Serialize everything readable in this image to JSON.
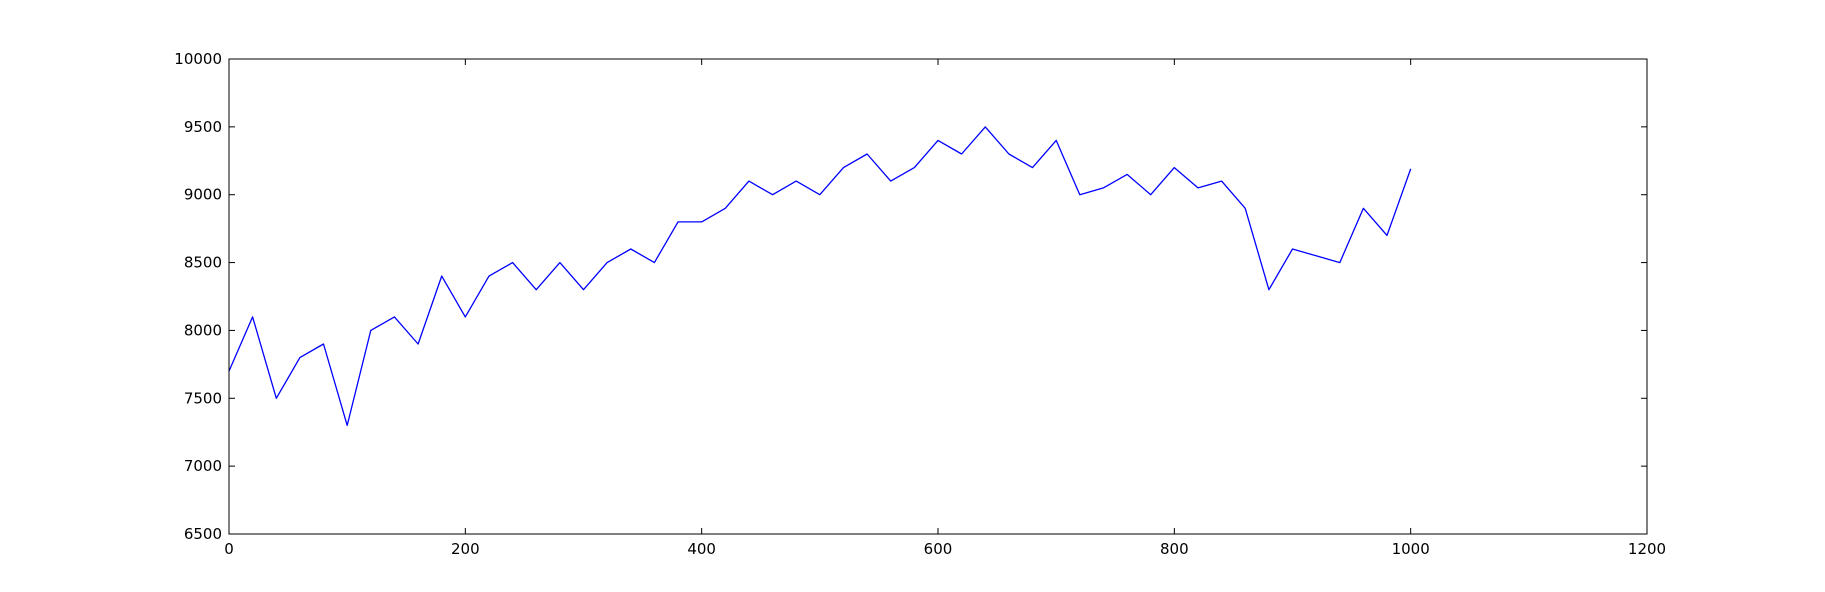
{
  "chart_data": {
    "type": "line",
    "title": "",
    "xlabel": "",
    "ylabel": "",
    "xlim": [
      0,
      1200
    ],
    "ylim": [
      6500,
      10000
    ],
    "xticks": [
      0,
      200,
      400,
      600,
      800,
      1000,
      1200
    ],
    "yticks": [
      6500,
      7000,
      7500,
      8000,
      8500,
      9000,
      9500,
      10000
    ],
    "xtick_labels": [
      "0",
      "200",
      "400",
      "600",
      "800",
      "1000",
      "1200"
    ],
    "ytick_labels": [
      "6500",
      "7000",
      "7500",
      "8000",
      "8500",
      "9000",
      "9500",
      "10000"
    ],
    "grid": false,
    "legend": "none",
    "series": [
      {
        "color": "#0000ff",
        "x": [
          0,
          20,
          40,
          60,
          80,
          100,
          120,
          140,
          160,
          180,
          200,
          220,
          240,
          260,
          280,
          300,
          320,
          340,
          360,
          380,
          400,
          420,
          440,
          460,
          480,
          500,
          520,
          540,
          560,
          580,
          600,
          620,
          640,
          660,
          680,
          700,
          720,
          740,
          760,
          780,
          800,
          820,
          840,
          860,
          880,
          900,
          920,
          940,
          960,
          980,
          1000
        ],
        "y": [
          7700,
          8100,
          7500,
          7800,
          7900,
          7300,
          8000,
          8100,
          7900,
          8400,
          8100,
          8400,
          8500,
          8300,
          8500,
          8300,
          8500,
          8600,
          8500,
          8800,
          8800,
          8900,
          9100,
          9000,
          9100,
          9000,
          9200,
          9300,
          9100,
          9200,
          9400,
          9300,
          9500,
          9300,
          9200,
          9400,
          9000,
          9050,
          9150,
          9000,
          9200,
          9050,
          9100,
          8900,
          8300,
          8600,
          8550,
          8500,
          8900,
          8700,
          9190
        ]
      }
    ]
  }
}
